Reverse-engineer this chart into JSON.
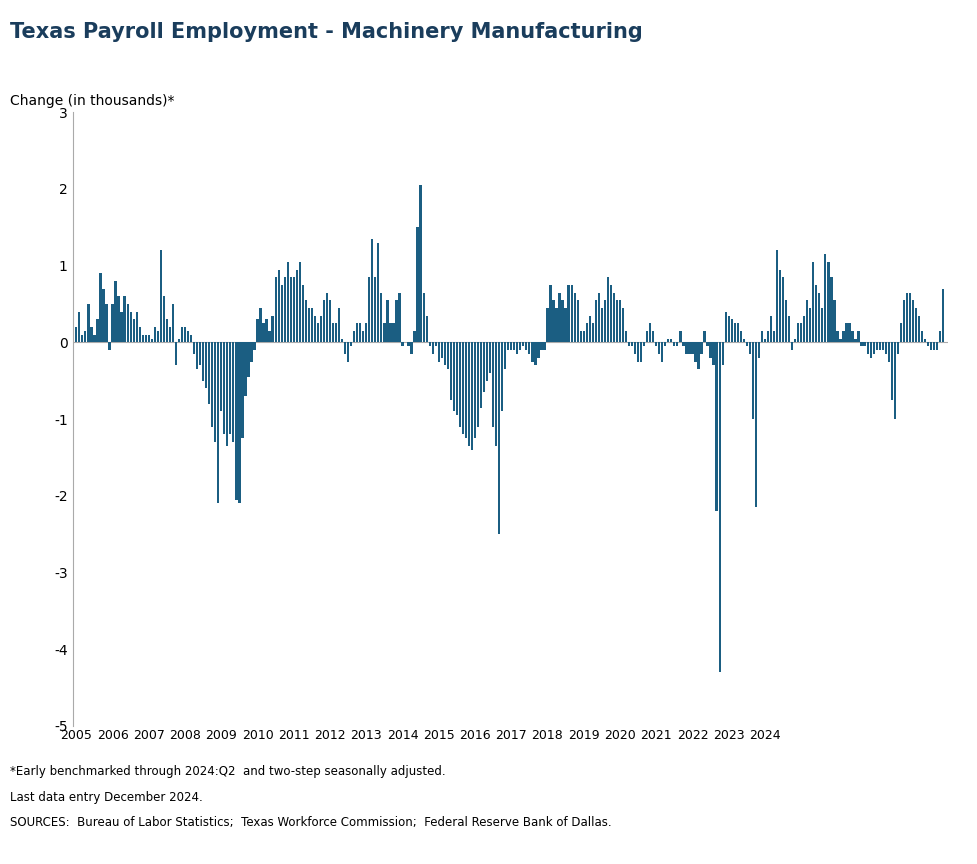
{
  "title": "Texas Payroll Employment - Machinery Manufacturing",
  "axis_label": "Change (in thousands)*",
  "ylim": [
    -5,
    3
  ],
  "yticks": [
    -5,
    -4,
    -3,
    -2,
    -1,
    0,
    1,
    2,
    3
  ],
  "bar_color": "#1b5e82",
  "title_color": "#1a3d5c",
  "footnotes": [
    "*Early benchmarked through 2024:Q2  and two-step seasonally adjusted.",
    "Last data entry December 2024.",
    "SOURCES:  Bureau of Labor Statistics;  Texas Workforce Commission;  Federal Reserve Bank of Dallas."
  ],
  "values": [
    0.2,
    0.4,
    0.1,
    0.15,
    0.5,
    0.2,
    0.1,
    0.3,
    0.9,
    0.7,
    0.5,
    -0.1,
    0.5,
    0.8,
    0.6,
    0.4,
    0.6,
    0.5,
    0.4,
    0.3,
    0.4,
    0.2,
    0.1,
    0.1,
    0.1,
    0.05,
    0.2,
    0.15,
    1.2,
    0.6,
    0.3,
    0.2,
    0.5,
    -0.3,
    0.05,
    0.2,
    0.2,
    0.15,
    0.1,
    -0.15,
    -0.35,
    -0.3,
    -0.5,
    -0.6,
    -0.8,
    -1.1,
    -1.3,
    -2.1,
    -0.9,
    -1.2,
    -1.35,
    -1.2,
    -1.3,
    -2.05,
    -2.1,
    -1.25,
    -0.7,
    -0.45,
    -0.25,
    -0.1,
    0.3,
    0.45,
    0.25,
    0.3,
    0.15,
    0.35,
    0.85,
    0.95,
    0.75,
    0.85,
    1.05,
    0.85,
    0.85,
    0.95,
    1.05,
    0.75,
    0.55,
    0.45,
    0.45,
    0.35,
    0.25,
    0.35,
    0.55,
    0.65,
    0.55,
    0.25,
    0.25,
    0.45,
    0.05,
    -0.15,
    -0.25,
    -0.05,
    0.15,
    0.25,
    0.25,
    0.15,
    0.25,
    0.85,
    1.35,
    0.85,
    1.3,
    0.65,
    0.25,
    0.55,
    0.25,
    0.25,
    0.55,
    0.65,
    -0.05,
    0.0,
    -0.05,
    -0.15,
    0.15,
    1.5,
    2.05,
    0.65,
    0.35,
    -0.05,
    -0.15,
    -0.05,
    -0.25,
    -0.2,
    -0.3,
    -0.35,
    -0.75,
    -0.9,
    -0.95,
    -1.1,
    -1.2,
    -1.25,
    -1.35,
    -1.4,
    -1.25,
    -1.1,
    -0.85,
    -0.65,
    -0.5,
    -0.4,
    -1.1,
    -1.35,
    -2.5,
    -0.9,
    -0.35,
    -0.1,
    -0.1,
    -0.1,
    -0.15,
    -0.1,
    -0.05,
    -0.1,
    -0.15,
    -0.25,
    -0.3,
    -0.2,
    -0.1,
    -0.1,
    0.45,
    0.75,
    0.55,
    0.45,
    0.65,
    0.55,
    0.45,
    0.75,
    0.75,
    0.65,
    0.55,
    0.15,
    0.15,
    0.25,
    0.35,
    0.25,
    0.55,
    0.65,
    0.45,
    0.55,
    0.85,
    0.75,
    0.65,
    0.55,
    0.55,
    0.45,
    0.15,
    -0.05,
    -0.05,
    -0.15,
    -0.25,
    -0.25,
    -0.05,
    0.15,
    0.25,
    0.15,
    -0.05,
    -0.15,
    -0.25,
    -0.05,
    0.05,
    0.05,
    -0.05,
    -0.05,
    0.15,
    -0.05,
    -0.15,
    -0.15,
    -0.15,
    -0.25,
    -0.35,
    -0.15,
    0.15,
    -0.05,
    -0.2,
    -0.3,
    -2.2,
    -4.3,
    -0.3,
    0.4,
    0.35,
    0.3,
    0.25,
    0.25,
    0.15,
    0.05,
    -0.05,
    -0.15,
    -1.0,
    -2.15,
    -0.2,
    0.15,
    0.05,
    0.15,
    0.35,
    0.15,
    1.2,
    0.95,
    0.85,
    0.55,
    0.35,
    -0.1,
    0.05,
    0.25,
    0.25,
    0.35,
    0.55,
    0.45,
    1.05,
    0.75,
    0.65,
    0.45,
    1.15,
    1.05,
    0.85,
    0.55,
    0.15,
    0.05,
    0.15,
    0.25,
    0.25,
    0.15,
    0.05,
    0.15,
    -0.05,
    -0.05,
    -0.15,
    -0.2,
    -0.15,
    -0.1,
    -0.1,
    -0.1,
    -0.15,
    -0.25,
    -0.75,
    -1.0,
    -0.15,
    0.25,
    0.55,
    0.65,
    0.65,
    0.55,
    0.45,
    0.35,
    0.15,
    0.05,
    -0.05,
    -0.1,
    -0.1,
    -0.1,
    0.15,
    0.7
  ],
  "start_year": 2005,
  "num_years": 20
}
